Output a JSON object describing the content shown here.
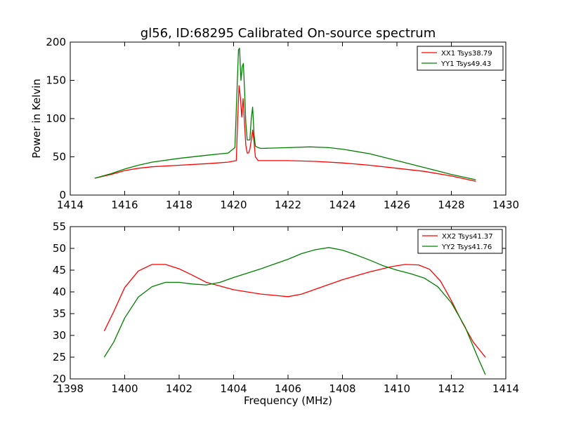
{
  "chart_data": [
    {
      "type": "line",
      "title": "gl56, ID:68295 Calibrated On-source spectrum",
      "xlabel": "",
      "ylabel": "Power in Kelvin",
      "xlim": [
        1414,
        1430
      ],
      "ylim": [
        0,
        200
      ],
      "xticks": [
        "1414",
        "1416",
        "1418",
        "1420",
        "1422",
        "1424",
        "1426",
        "1428",
        "1430"
      ],
      "yticks": [
        "0",
        "50",
        "100",
        "150",
        "200"
      ],
      "grid": false,
      "legend_position": "top-right",
      "series": [
        {
          "name": "XX1 Tsys38.79",
          "color": "#ff0000",
          "x": [
            1414.9,
            1415.5,
            1416.0,
            1416.5,
            1417.0,
            1418.0,
            1419.0,
            1419.8,
            1420.1,
            1420.15,
            1420.2,
            1420.25,
            1420.3,
            1420.35,
            1420.4,
            1420.45,
            1420.5,
            1420.55,
            1420.6,
            1420.65,
            1420.7,
            1420.75,
            1420.8,
            1420.9,
            1421.0,
            1422.0,
            1423.0,
            1424.0,
            1425.0,
            1426.0,
            1427.0,
            1428.0,
            1428.9
          ],
          "y": [
            22,
            27,
            32,
            35,
            37,
            39,
            41,
            43,
            45,
            100,
            143,
            128,
            102,
            126,
            95,
            65,
            55,
            55,
            60,
            72,
            85,
            70,
            50,
            45,
            45,
            45,
            44,
            42,
            39,
            35,
            31,
            25,
            18
          ]
        },
        {
          "name": "YY1 Tsys49.43",
          "color": "#008000",
          "x": [
            1414.9,
            1415.5,
            1416.0,
            1416.5,
            1417.0,
            1418.0,
            1419.0,
            1419.8,
            1420.05,
            1420.12,
            1420.18,
            1420.22,
            1420.27,
            1420.32,
            1420.36,
            1420.4,
            1420.45,
            1420.5,
            1420.6,
            1420.65,
            1420.7,
            1420.75,
            1420.8,
            1420.9,
            1421.0,
            1422.0,
            1422.8,
            1423.5,
            1424.0,
            1425.0,
            1426.0,
            1427.0,
            1428.0,
            1428.9
          ],
          "y": [
            22,
            28,
            34,
            39,
            43,
            48,
            52,
            55,
            62,
            130,
            190,
            192,
            150,
            168,
            172,
            140,
            95,
            72,
            72,
            100,
            115,
            80,
            64,
            62,
            61,
            62,
            63,
            62,
            60,
            54,
            45,
            36,
            27,
            20
          ]
        }
      ]
    },
    {
      "type": "line",
      "title": "",
      "xlabel": "Frequency (MHz)",
      "ylabel": "",
      "xlim": [
        1398,
        1414
      ],
      "ylim": [
        20,
        55
      ],
      "xticks": [
        "1398",
        "1400",
        "1402",
        "1404",
        "1406",
        "1408",
        "1410",
        "1412",
        "1414"
      ],
      "yticks": [
        "20",
        "25",
        "30",
        "35",
        "40",
        "45",
        "50",
        "55"
      ],
      "grid": false,
      "legend_position": "top-right",
      "series": [
        {
          "name": "XX2 Tsys41.37",
          "color": "#ff0000",
          "x": [
            1399.25,
            1399.6,
            1400.0,
            1400.5,
            1401.0,
            1401.5,
            1402.0,
            1402.5,
            1403.0,
            1404.0,
            1405.0,
            1406.0,
            1406.5,
            1407.0,
            1408.0,
            1409.0,
            1409.8,
            1410.3,
            1410.8,
            1411.2,
            1411.6,
            1412.0,
            1412.4,
            1412.8,
            1413.25
          ],
          "y": [
            31,
            35.5,
            41,
            44.8,
            46.3,
            46.3,
            45.3,
            43.8,
            42.2,
            40.5,
            39.5,
            38.9,
            39.5,
            40.6,
            42.8,
            44.6,
            45.8,
            46.3,
            46.2,
            45.2,
            42.5,
            38,
            33,
            28.5,
            25
          ]
        },
        {
          "name": "YY2 Tsys41.76",
          "color": "#008000",
          "x": [
            1399.25,
            1399.6,
            1400.0,
            1400.5,
            1401.0,
            1401.5,
            1402.0,
            1402.5,
            1403.0,
            1403.5,
            1404.0,
            1405.0,
            1406.0,
            1406.5,
            1407.0,
            1407.5,
            1408.0,
            1408.5,
            1409.0,
            1409.5,
            1410.0,
            1410.5,
            1411.0,
            1411.5,
            1412.0,
            1412.5,
            1413.0,
            1413.25
          ],
          "y": [
            25,
            28.5,
            34,
            38.8,
            41.2,
            42.2,
            42.2,
            41.8,
            41.6,
            42.2,
            43.3,
            45.3,
            47.5,
            48.8,
            49.7,
            50.2,
            49.6,
            48.5,
            47.3,
            46.0,
            45.0,
            44.2,
            43.2,
            41.2,
            37.5,
            32.0,
            24.5,
            21
          ]
        }
      ]
    }
  ]
}
